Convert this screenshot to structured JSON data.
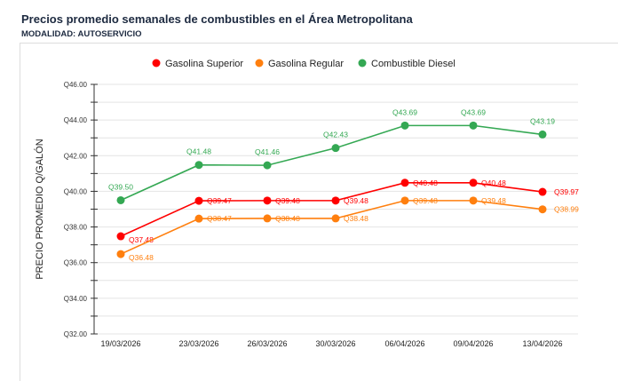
{
  "header": {
    "title": "Precios promedio semanales de combustibles en el Área Metropolitana",
    "subtitle": "MODALIDAD: AUTOSERVICIO"
  },
  "chart_data": {
    "type": "line",
    "title": "Precios promedio semanales de combustibles en el Área Metropolitana",
    "subtitle": "MODALIDAD: AUTOSERVICIO",
    "ylabel": "PRECIO PROMEDIO Q/GALÓN",
    "xlabel": "",
    "ylim": [
      32,
      46
    ],
    "yticks": [
      "Q32.00",
      "Q34.00",
      "Q36.00",
      "Q38.00",
      "Q40.00",
      "Q42.00",
      "Q44.00",
      "Q46.00"
    ],
    "grid": true,
    "legend_position": "top",
    "categories": [
      "19/03/2026",
      "23/03/2026",
      "26/03/2026",
      "30/03/2026",
      "06/04/2026",
      "09/04/2026",
      "13/04/2026"
    ],
    "series": [
      {
        "name": "Gasolina Superior",
        "color": "#ff0000",
        "values": [
          37.48,
          39.47,
          39.48,
          39.48,
          40.48,
          40.48,
          39.97
        ]
      },
      {
        "name": "Gasolina Regular",
        "color": "#ff7f0e",
        "values": [
          36.48,
          38.47,
          38.48,
          38.48,
          39.48,
          39.48,
          38.99
        ]
      },
      {
        "name": "Combustible Diesel",
        "color": "#34a853",
        "values": [
          39.5,
          41.48,
          41.46,
          42.43,
          43.69,
          43.69,
          43.19
        ]
      }
    ]
  }
}
